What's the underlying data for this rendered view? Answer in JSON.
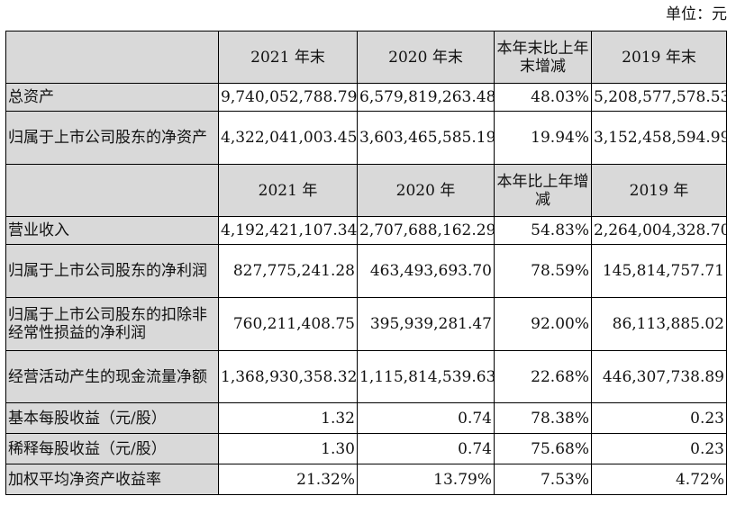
{
  "unit_label": "单位：元",
  "header1": [
    "",
    "2021 年末",
    "2020 年末",
    "本年末比上年末增减",
    "2019 年末"
  ],
  "header2": [
    "",
    "2021 年",
    "2020 年",
    "本年比上年增减",
    "2019 年"
  ],
  "balance_rows": [
    {
      "label": "总资产",
      "v2021": "9,740,052,788.79",
      "v2020": "6,579,819,263.48",
      "change": "48.03%",
      "v2019": "5,208,577,578.53"
    },
    {
      "label": "归属于上市公司股东的净资产",
      "v2021": "4,322,041,003.45",
      "v2020": "3,603,465,585.19",
      "change": "19.94%",
      "v2019": "3,152,458,594.99"
    }
  ],
  "income_rows": [
    {
      "label": "营业收入",
      "v2021": "4,192,421,107.34",
      "v2020": "2,707,688,162.29",
      "change": "54.83%",
      "v2019": "2,264,004,328.70"
    },
    {
      "label": "归属于上市公司股东的净利润",
      "v2021": "827,775,241.28",
      "v2020": "463,493,693.70",
      "change": "78.59%",
      "v2019": "145,814,757.71"
    },
    {
      "label": "归属于上市公司股东的扣除非经常性损益的净利润",
      "v2021": "760,211,408.75",
      "v2020": "395,939,281.47",
      "change": "92.00%",
      "v2019": "86,113,885.02"
    },
    {
      "label": "经营活动产生的现金流量净额",
      "v2021": "1,368,930,358.32",
      "v2020": "1,115,814,539.63",
      "change": "22.68%",
      "v2019": "446,307,738.89"
    },
    {
      "label": "基本每股收益（元/股）",
      "v2021": "1.32",
      "v2020": "0.74",
      "change": "78.38%",
      "v2019": "0.23"
    },
    {
      "label": "稀释每股收益（元/股）",
      "v2021": "1.30",
      "v2020": "0.74",
      "change": "75.68%",
      "v2019": "0.23"
    },
    {
      "label": "加权平均净资产收益率",
      "v2021": "21.32%",
      "v2020": "13.79%",
      "change": "7.53%",
      "v2019": "4.72%"
    }
  ]
}
